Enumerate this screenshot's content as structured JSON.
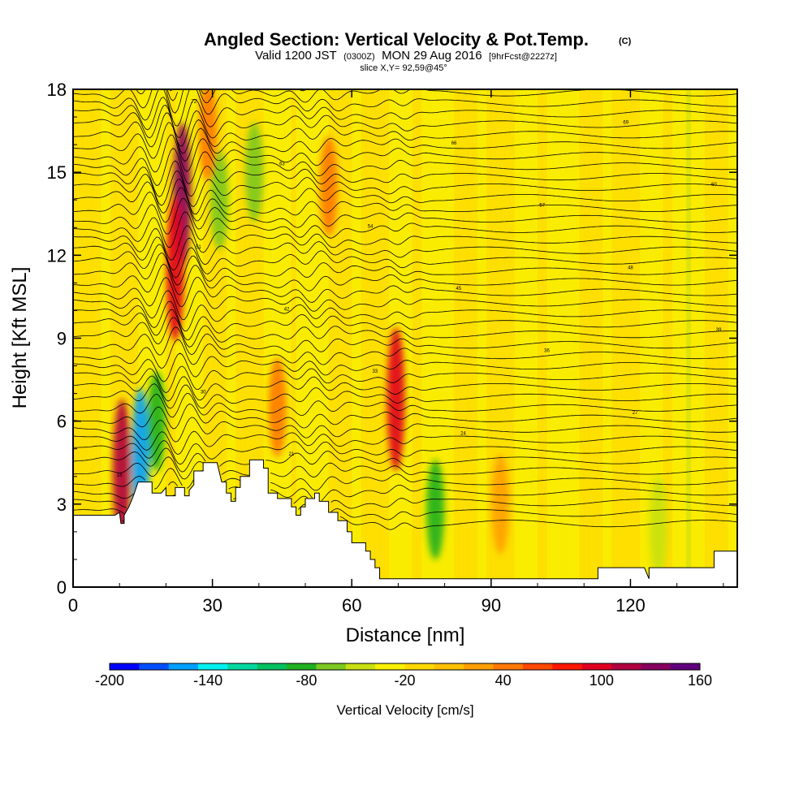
{
  "title": {
    "main": "Angled Section: Vertical Velocity & Pot.Temp.",
    "main_suffix": "(C)",
    "valid_prefix": "Valid 1200 JST",
    "valid_zulu": "(0300Z)",
    "valid_date": "MON 29 Aug 2016",
    "forecast": "[9hrFcst@2227z]",
    "slice": "slice X,Y= 92,59@45°"
  },
  "chart_data": {
    "type": "heatmap",
    "xlabel": "Distance [nm]",
    "ylabel": "Height [Kft MSL]",
    "xlim": [
      0,
      143
    ],
    "ylim": [
      0,
      18
    ],
    "x_ticks": [
      0,
      30,
      60,
      90,
      120
    ],
    "y_ticks": [
      0,
      3,
      6,
      9,
      12,
      15,
      18
    ],
    "x_tick_labels": [
      "0",
      "30",
      "60",
      "90",
      "120"
    ],
    "y_tick_labels": [
      "0",
      "3",
      "6",
      "9",
      "12",
      "15",
      "18"
    ],
    "colorbar": {
      "label": "Vertical Velocity [cm/s]",
      "min": -200,
      "max": 160,
      "step": 20,
      "tick_values": [
        -200,
        -140,
        -80,
        -20,
        40,
        100,
        160
      ],
      "tick_labels": [
        "-200",
        "-140",
        "-80",
        "-20",
        "40",
        "100",
        "160"
      ],
      "colors": [
        "#0000ff",
        "#0050ff",
        "#00a0ff",
        "#00f0f0",
        "#00d8a0",
        "#00c060",
        "#20b020",
        "#7cc820",
        "#c8e010",
        "#f8f000",
        "#ffd800",
        "#ffc000",
        "#ffa000",
        "#ff7800",
        "#ff4800",
        "#ff1800",
        "#e00020",
        "#b00040",
        "#880060",
        "#60007c"
      ]
    },
    "terrain_profile": [
      [
        0,
        2.6
      ],
      [
        5,
        2.6
      ],
      [
        9,
        2.6
      ],
      [
        10,
        2.7
      ],
      [
        10.3,
        2.3
      ],
      [
        11,
        2.3
      ],
      [
        11,
        2.6
      ],
      [
        12,
        2.9
      ],
      [
        13,
        3.3
      ],
      [
        14,
        3.8
      ],
      [
        17,
        3.8
      ],
      [
        17,
        3.4
      ],
      [
        19,
        3.4
      ],
      [
        20,
        3.6
      ],
      [
        20,
        3.3
      ],
      [
        22,
        3.3
      ],
      [
        22,
        3.6
      ],
      [
        24,
        3.6
      ],
      [
        24,
        3.3
      ],
      [
        25,
        3.3
      ],
      [
        25,
        3.5
      ],
      [
        26,
        3.7
      ],
      [
        26,
        4.2
      ],
      [
        28,
        4.2
      ],
      [
        28,
        4.5
      ],
      [
        31,
        4.5
      ],
      [
        32,
        3.8
      ],
      [
        33,
        3.8
      ],
      [
        33,
        3.4
      ],
      [
        34,
        3.4
      ],
      [
        34,
        3.1
      ],
      [
        35,
        3.1
      ],
      [
        35,
        3.6
      ],
      [
        36,
        3.6
      ],
      [
        36,
        4.0
      ],
      [
        38,
        4.0
      ],
      [
        38,
        4.6
      ],
      [
        41,
        4.6
      ],
      [
        41,
        4.3
      ],
      [
        42,
        4.3
      ],
      [
        42,
        3.4
      ],
      [
        44,
        3.4
      ],
      [
        44,
        3.2
      ],
      [
        47,
        3.2
      ],
      [
        47,
        2.9
      ],
      [
        48,
        2.9
      ],
      [
        48,
        2.6
      ],
      [
        49,
        2.6
      ],
      [
        49,
        2.9
      ],
      [
        50,
        2.9
      ],
      [
        50,
        3.2
      ],
      [
        52,
        3.2
      ],
      [
        52,
        3.4
      ],
      [
        53,
        3.4
      ],
      [
        53,
        3.1
      ],
      [
        55,
        3.1
      ],
      [
        55,
        2.7
      ],
      [
        57,
        2.7
      ],
      [
        57,
        2.4
      ],
      [
        59,
        2.4
      ],
      [
        59,
        2.0
      ],
      [
        60,
        2.0
      ],
      [
        60,
        1.6
      ],
      [
        63,
        1.6
      ],
      [
        63,
        1.3
      ],
      [
        64,
        1.3
      ],
      [
        64,
        1.0
      ],
      [
        65,
        1.0
      ],
      [
        65,
        0.7
      ],
      [
        66,
        0.7
      ],
      [
        66,
        0.3
      ],
      [
        69,
        0.3
      ],
      [
        72,
        0.3
      ],
      [
        75,
        0.3
      ],
      [
        100,
        0.3
      ],
      [
        113,
        0.3
      ],
      [
        113,
        0.7
      ],
      [
        115,
        0.7
      ],
      [
        123,
        0.7
      ],
      [
        124,
        0.3
      ],
      [
        124,
        0.7
      ],
      [
        126,
        0.7
      ],
      [
        134,
        0.7
      ],
      [
        138,
        0.7
      ],
      [
        138,
        1.3
      ],
      [
        143,
        1.3
      ]
    ],
    "theta_contours": {
      "levels_count": 44,
      "base_height_start": 2.3,
      "spacing_kft": 0.38,
      "labels": [
        "18",
        "21",
        "24",
        "27",
        "30",
        "33",
        "36",
        "39",
        "42",
        "45",
        "48",
        "51",
        "54",
        "57",
        "60",
        "63",
        "66",
        "69",
        "72"
      ]
    },
    "velocity_features": [
      {
        "x": 10.5,
        "y": 4.2,
        "value": 140
      },
      {
        "x": 14.5,
        "y": 4.6,
        "value": -150
      },
      {
        "x": 23.5,
        "y": 14.2,
        "value": 160
      },
      {
        "x": 22.0,
        "y": 11.5,
        "value": 120
      },
      {
        "x": 69.5,
        "y": 6.8,
        "value": 120
      },
      {
        "x": 18.0,
        "y": 6.0,
        "value": -80
      },
      {
        "x": 31.5,
        "y": 14.0,
        "value": -60
      },
      {
        "x": 39.0,
        "y": 15.0,
        "value": -60
      },
      {
        "x": 78.0,
        "y": 2.8,
        "value": -70
      },
      {
        "x": 55.0,
        "y": 14.5,
        "value": 60
      },
      {
        "x": 29.0,
        "y": 16.5,
        "value": 60
      },
      {
        "x": 44.0,
        "y": 6.5,
        "value": 60
      },
      {
        "x": 92.0,
        "y": 3.0,
        "value": 40
      },
      {
        "x": 126.0,
        "y": 2.2,
        "value": -40
      }
    ]
  }
}
